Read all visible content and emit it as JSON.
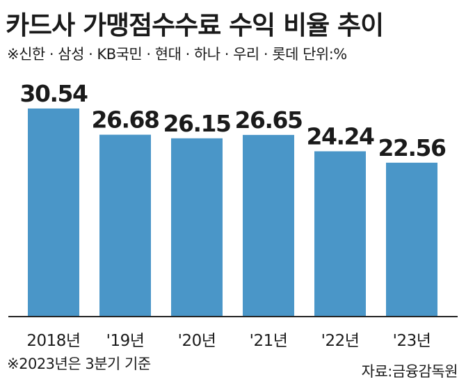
{
  "header": {
    "title": "카드사 가맹점수수료 수익 비율 추이",
    "subtitle": "※신한 · 삼성 · KB국민 · 현대 · 하나 · 우리 · 롯데  단위:%"
  },
  "footer": {
    "note": "※2023년은 3분기 기준",
    "source": "자료:금융감독원"
  },
  "chart_data": {
    "type": "bar",
    "categories": [
      "2018년",
      "'19년",
      "'20년",
      "'21년",
      "'22년",
      "'23년"
    ],
    "values": [
      30.54,
      26.68,
      26.15,
      26.65,
      24.24,
      22.56
    ],
    "value_labels": [
      "30.54",
      "26.68",
      "26.15",
      "26.65",
      "24.24",
      "22.56"
    ],
    "unit": "%",
    "bar_color": "#4a96c8",
    "axis_color": "#222222"
  }
}
